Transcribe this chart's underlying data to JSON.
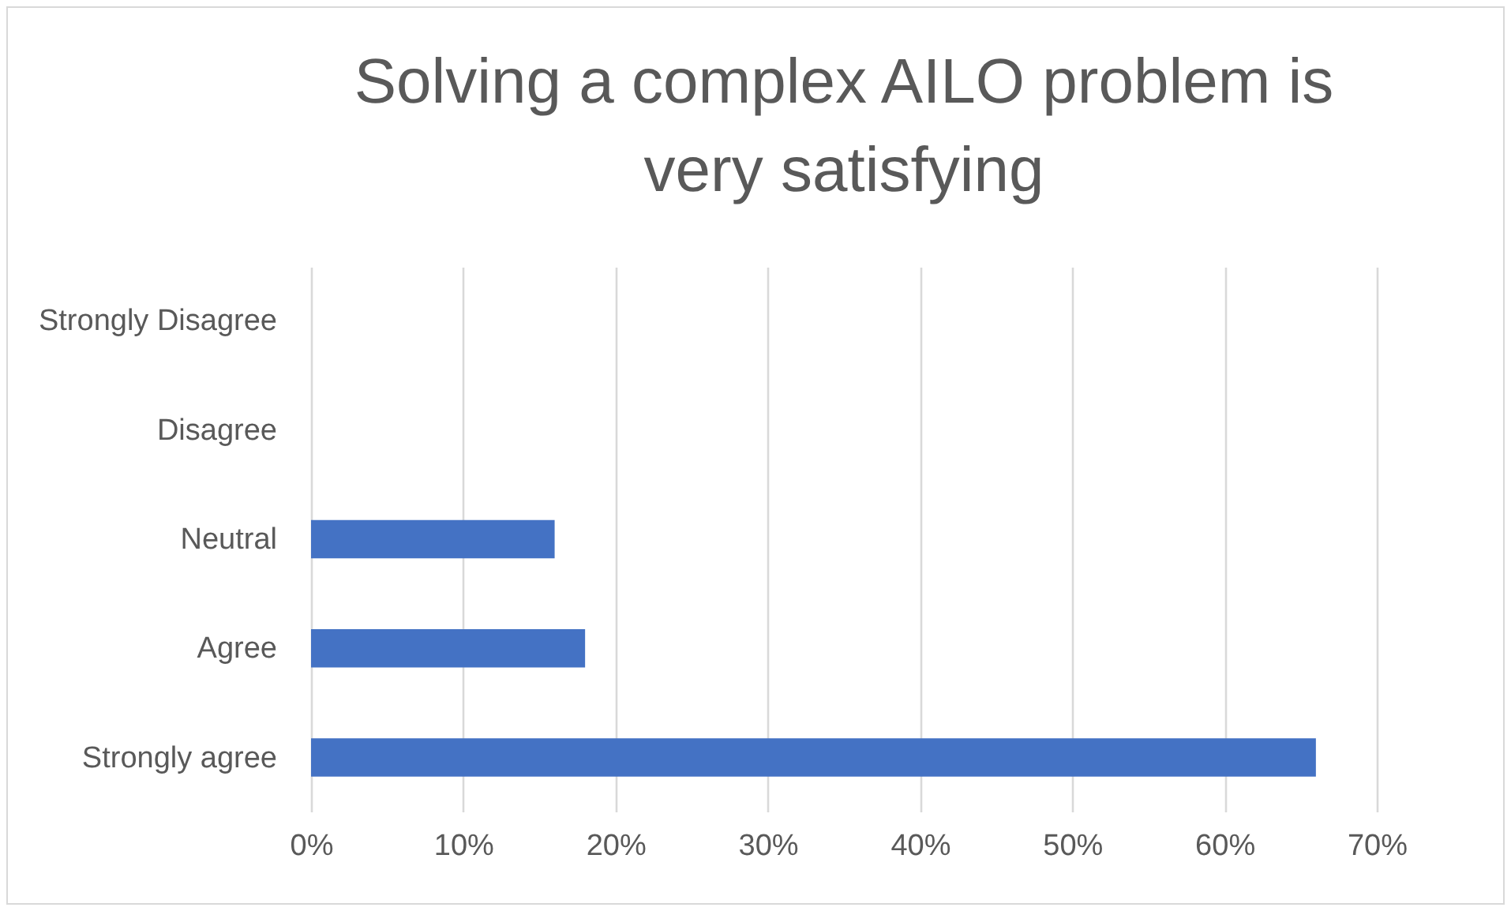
{
  "chart_data": {
    "type": "bar",
    "orientation": "horizontal",
    "title": "Solving a complex AILO problem is very satisfying",
    "categories": [
      "Strongly Disagree",
      "Disagree",
      "Neutral",
      "Agree",
      "Strongly agree"
    ],
    "values": [
      0,
      0,
      16,
      18,
      66
    ],
    "color": "#4472c4",
    "xlim": [
      0,
      70
    ],
    "xticks": [
      {
        "value": 0,
        "label": "0%"
      },
      {
        "value": 10,
        "label": "10%"
      },
      {
        "value": 20,
        "label": "20%"
      },
      {
        "value": 30,
        "label": "30%"
      },
      {
        "value": 40,
        "label": "40%"
      },
      {
        "value": 50,
        "label": "50%"
      },
      {
        "value": 60,
        "label": "60%"
      },
      {
        "value": 70,
        "label": "70%"
      }
    ],
    "grid": "x"
  }
}
